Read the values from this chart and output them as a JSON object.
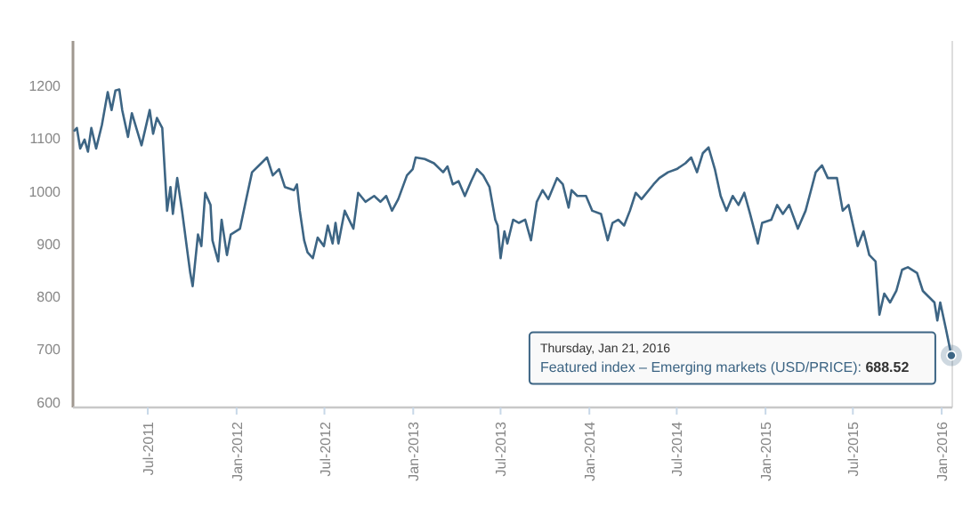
{
  "chart_data": {
    "type": "line",
    "x": [
      "2011-01-30",
      "2011-02-04",
      "2011-02-11",
      "2011-02-20",
      "2011-02-27",
      "2011-03-06",
      "2011-03-16",
      "2011-03-28",
      "2011-04-09",
      "2011-04-17",
      "2011-04-25",
      "2011-05-03",
      "2011-05-09",
      "2011-05-21",
      "2011-05-29",
      "2011-06-18",
      "2011-07-05",
      "2011-07-12",
      "2011-07-20",
      "2011-07-31",
      "2011-08-10",
      "2011-08-17",
      "2011-08-22",
      "2011-08-31",
      "2011-09-10",
      "2011-09-22",
      "2011-09-27",
      "2011-10-02",
      "2011-10-13",
      "2011-10-20",
      "2011-10-28",
      "2011-11-08",
      "2011-11-12",
      "2011-11-24",
      "2011-12-01",
      "2011-12-12",
      "2011-12-20",
      "2012-01-08",
      "2012-01-21",
      "2012-02-02",
      "2012-02-21",
      "2012-03-04",
      "2012-03-16",
      "2012-03-29",
      "2012-04-10",
      "2012-04-29",
      "2012-05-05",
      "2012-05-11",
      "2012-05-20",
      "2012-05-27",
      "2012-06-07",
      "2012-06-17",
      "2012-06-30",
      "2012-07-08",
      "2012-07-18",
      "2012-07-24",
      "2012-07-30",
      "2012-08-12",
      "2012-08-30",
      "2012-09-09",
      "2012-09-24",
      "2012-10-12",
      "2012-10-25",
      "2012-11-06",
      "2012-11-18",
      "2012-12-01",
      "2012-12-19",
      "2012-12-31",
      "2013-01-06",
      "2013-01-25",
      "2013-02-13",
      "2013-03-04",
      "2013-03-13",
      "2013-03-24",
      "2013-04-05",
      "2013-04-18",
      "2013-05-01",
      "2013-05-13",
      "2013-05-26",
      "2013-06-08",
      "2013-06-20",
      "2013-06-25",
      "2013-07-01",
      "2013-07-09",
      "2013-07-15",
      "2013-07-27",
      "2013-08-08",
      "2013-08-21",
      "2013-09-02",
      "2013-09-14",
      "2013-09-26",
      "2013-10-08",
      "2013-10-26",
      "2013-11-07",
      "2013-11-19",
      "2013-11-25",
      "2013-12-07",
      "2013-12-25",
      "2014-01-07",
      "2014-01-25",
      "2014-02-08",
      "2014-02-18",
      "2014-03-02",
      "2014-03-14",
      "2014-03-26",
      "2014-04-07",
      "2014-04-19",
      "2014-05-14",
      "2014-05-26",
      "2014-06-13",
      "2014-07-01",
      "2014-07-19",
      "2014-07-31",
      "2014-08-12",
      "2014-08-24",
      "2014-09-05",
      "2014-09-18",
      "2014-09-30",
      "2014-10-12",
      "2014-10-25",
      "2014-11-06",
      "2014-11-18",
      "2014-11-30",
      "2014-12-16",
      "2014-12-25",
      "2015-01-13",
      "2015-01-25",
      "2015-02-06",
      "2015-02-19",
      "2015-03-09",
      "2015-03-25",
      "2015-04-07",
      "2015-04-15",
      "2015-04-28",
      "2015-05-10",
      "2015-05-29",
      "2015-06-10",
      "2015-06-22",
      "2015-07-11",
      "2015-07-23",
      "2015-08-04",
      "2015-08-17",
      "2015-08-25",
      "2015-09-04",
      "2015-09-16",
      "2015-09-29",
      "2015-10-11",
      "2015-10-23",
      "2015-11-11",
      "2015-11-23",
      "2015-12-05",
      "2015-12-17",
      "2015-12-23",
      "2015-12-29",
      "2016-01-10",
      "2016-01-21"
    ],
    "series": [
      {
        "color": "#3d6584",
        "values": [
          1115,
          1120,
          1081,
          1098,
          1075,
          1120,
          1081,
          1126,
          1188,
          1154,
          1191,
          1193,
          1154,
          1103,
          1148,
          1087,
          1154,
          1109,
          1139,
          1120,
          963,
          1008,
          957,
          1025,
          963,
          879,
          845,
          820,
          918,
          896,
          997,
          974,
          907,
          867,
          946,
          879,
          918,
          929,
          985,
          1036,
          1053,
          1064,
          1030,
          1042,
          1008,
          1002,
          1013,
          963,
          907,
          884,
          873,
          912,
          896,
          935,
          901,
          940,
          901,
          963,
          929,
          997,
          980,
          991,
          980,
          991,
          963,
          985,
          1030,
          1042,
          1064,
          1061,
          1053,
          1036,
          1047,
          1013,
          1019,
          991,
          1019,
          1042,
          1030,
          1008,
          946,
          935,
          873,
          924,
          901,
          946,
          940,
          946,
          907,
          980,
          1002,
          985,
          1025,
          1013,
          969,
          1002,
          991,
          991,
          963,
          957,
          907,
          940,
          946,
          935,
          963,
          997,
          985,
          1013,
          1025,
          1036,
          1042,
          1053,
          1064,
          1036,
          1072,
          1083,
          1042,
          991,
          963,
          991,
          974,
          997,
          957,
          901,
          940,
          946,
          974,
          957,
          974,
          929,
          963,
          1008,
          1036,
          1049,
          1025,
          1025,
          963,
          974,
          896,
          924,
          879,
          867,
          766,
          806,
          789,
          811,
          851,
          856,
          845,
          811,
          800,
          789,
          755,
          789,
          738,
          688.52
        ]
      }
    ],
    "xlim": [
      "2011-01-27",
      "2016-01-23"
    ],
    "xticks": [
      {
        "value": "2011-07-01",
        "label": "Jul-2011"
      },
      {
        "value": "2012-01-01",
        "label": "Jan-2012"
      },
      {
        "value": "2012-07-01",
        "label": "Jul-2012"
      },
      {
        "value": "2013-01-01",
        "label": "Jan-2013"
      },
      {
        "value": "2013-07-01",
        "label": "Jul-2013"
      },
      {
        "value": "2014-01-01",
        "label": "Jan-2014"
      },
      {
        "value": "2014-07-01",
        "label": "Jul-2014"
      },
      {
        "value": "2015-01-01",
        "label": "Jan-2015"
      },
      {
        "value": "2015-07-01",
        "label": "Jul-2015"
      },
      {
        "value": "2016-01-01",
        "label": "Jan-2016"
      }
    ],
    "ylim": [
      590,
      1285
    ],
    "yticks": [
      600,
      700,
      800,
      900,
      1000,
      1100,
      1200
    ],
    "grid": false,
    "marker": "none",
    "line_style": "solid",
    "annotations": [
      "Thursday, Jan 21, 2016",
      "Featured index – Emerging markets (USD/PRICE): 688.52"
    ]
  }
}
